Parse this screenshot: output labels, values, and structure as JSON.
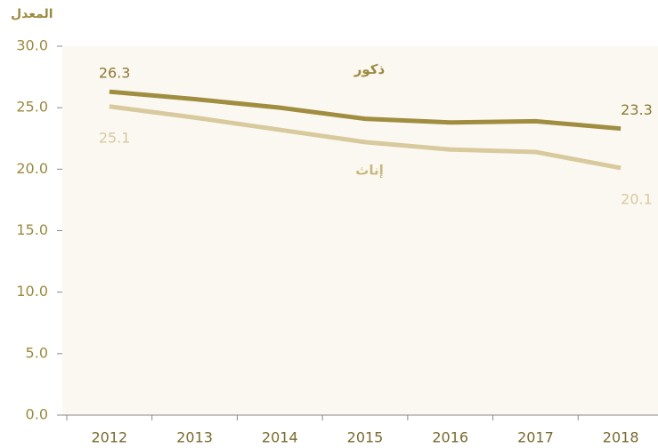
{
  "chart_data": {
    "type": "line",
    "y_label": "المعدل",
    "categories": [
      "2012",
      "2013",
      "2014",
      "2015",
      "2016",
      "2017",
      "2018"
    ],
    "series": [
      {
        "name": "ذكور",
        "color": "#a08d3f",
        "values": [
          26.3,
          25.7,
          25.0,
          24.1,
          23.8,
          23.9,
          23.3
        ],
        "value_labels": [
          "26.3",
          null,
          null,
          null,
          null,
          null,
          "23.3"
        ]
      },
      {
        "name": "إناث",
        "color": "#d8ca9d",
        "values": [
          25.1,
          24.2,
          23.2,
          22.2,
          21.6,
          21.4,
          20.1
        ],
        "value_labels": [
          "25.1",
          null,
          null,
          null,
          null,
          null,
          "20.1"
        ]
      }
    ],
    "ylim": [
      0,
      30
    ],
    "yticks": [
      {
        "value": 0,
        "label": "0.0"
      },
      {
        "value": 5,
        "label": "5.0"
      },
      {
        "value": 10,
        "label": "10.0"
      },
      {
        "value": 15,
        "label": "15.0"
      },
      {
        "value": 20,
        "label": "20.0"
      },
      {
        "value": 25,
        "label": "25.0"
      },
      {
        "value": 30,
        "label": "30.0"
      }
    ],
    "grid": false
  }
}
